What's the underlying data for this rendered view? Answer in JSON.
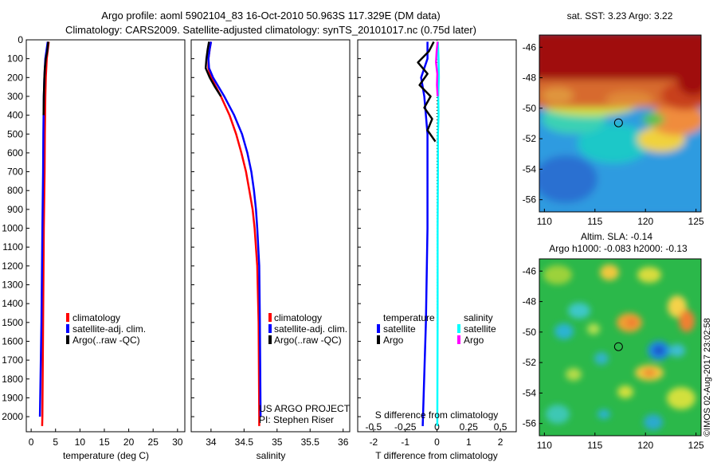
{
  "header": {
    "title_line1": "Argo profile: aoml 5902104_83 16-Oct-2010 50.963S 117.329E (DM data)",
    "title_line2": "Climatology: CARS2009. Satellite-adjusted climatology: synTS_20101017.nc (0.75d later)"
  },
  "colors": {
    "climatology": "#ff0000",
    "satellite": "#0000ff",
    "argo": "#000000",
    "sal_satellite": "#00ffff",
    "sal_argo": "#ff00ff"
  },
  "chart_data": [
    {
      "type": "line",
      "id": "temperature_profile",
      "xlabel": "temperature (deg C)",
      "ylim": [
        2080,
        0
      ],
      "yticks": [
        0,
        100,
        200,
        300,
        400,
        500,
        600,
        700,
        800,
        900,
        1000,
        1100,
        1200,
        1300,
        1400,
        1500,
        1600,
        1700,
        1800,
        1900,
        2000
      ],
      "xlim": [
        -1,
        31.5
      ],
      "xticks": [
        0,
        5,
        10,
        15,
        20,
        25,
        30
      ],
      "legend": [
        "climatology",
        "satellite-adj. clim.",
        "Argo(..raw -QC)"
      ],
      "series": [
        {
          "name": "climatology",
          "color": "#ff0000",
          "depth": [
            10,
            100,
            200,
            300,
            400,
            500,
            700,
            1000,
            1500,
            2000,
            2050
          ],
          "values": [
            3.6,
            3.2,
            3.0,
            2.9,
            2.85,
            2.8,
            2.75,
            2.6,
            2.45,
            2.3,
            2.25
          ]
        },
        {
          "name": "satellite-adj. clim.",
          "color": "#0000ff",
          "depth": [
            10,
            100,
            200,
            300,
            400,
            500,
            700,
            1000,
            1500,
            2000
          ],
          "values": [
            3.4,
            2.9,
            2.7,
            2.6,
            2.55,
            2.5,
            2.45,
            2.3,
            2.1,
            1.8
          ]
        },
        {
          "name": "Argo(..raw -QC)",
          "color": "#000000",
          "depth": [
            10,
            60,
            100,
            150,
            200,
            300,
            400
          ],
          "values": [
            3.5,
            3.3,
            3.0,
            2.8,
            2.7,
            2.6,
            2.55
          ]
        }
      ]
    },
    {
      "type": "line",
      "id": "salinity_profile",
      "xlabel": "salinity",
      "ylim": [
        2080,
        0
      ],
      "xlim": [
        33.7,
        36.1
      ],
      "xticks": [
        34,
        34.5,
        35,
        35.5,
        36
      ],
      "xticklabels": [
        "34",
        "34.5",
        "35",
        "35.5",
        "36"
      ],
      "legend": [
        "climatology",
        "satellite-adj. clim.",
        "Argo(..raw -QC)"
      ],
      "annotation_line1": "US ARGO PROJECT",
      "annotation_line2": "PI: Stephen Riser",
      "series": [
        {
          "name": "climatology",
          "color": "#ff0000",
          "depth": [
            10,
            50,
            100,
            150,
            200,
            300,
            400,
            500,
            600,
            700,
            800,
            900,
            1000,
            1200,
            1500,
            2000,
            2050
          ],
          "values": [
            34.0,
            33.98,
            33.96,
            33.96,
            34.0,
            34.15,
            34.28,
            34.38,
            34.46,
            34.53,
            34.58,
            34.63,
            34.66,
            34.7,
            34.72,
            34.73,
            34.73
          ]
        },
        {
          "name": "satellite-adj. clim.",
          "color": "#0000ff",
          "depth": [
            10,
            50,
            100,
            150,
            200,
            300,
            400,
            500,
            600,
            700,
            800,
            900,
            1000,
            1200,
            1500,
            2000
          ],
          "values": [
            34.0,
            33.98,
            33.96,
            33.97,
            34.03,
            34.2,
            34.35,
            34.47,
            34.55,
            34.61,
            34.65,
            34.68,
            34.7,
            34.73,
            34.74,
            34.75
          ]
        },
        {
          "name": "Argo(..raw -QC)",
          "color": "#000000",
          "depth": [
            10,
            50,
            100,
            150,
            200,
            250,
            300
          ],
          "values": [
            33.97,
            33.95,
            33.93,
            33.92,
            33.98,
            34.06,
            34.15
          ]
        }
      ]
    },
    {
      "type": "line",
      "id": "difference_profile",
      "xlabel_t": "T difference from climatology",
      "xlabel_s": "S difference from climatology",
      "ylim": [
        2080,
        0
      ],
      "xlim": [
        -2.5,
        2.5
      ],
      "xticks_t": [
        -2,
        -1,
        0,
        1,
        2
      ],
      "xticklabels_s": [
        "-0.5",
        "-0.25",
        "0",
        "0.25",
        "0.5"
      ],
      "legend_temperature_title": "temperature",
      "legend_salinity_title": "salinity",
      "legend_satellite": "satellite",
      "legend_argo": "Argo",
      "series": [
        {
          "name": "temperature satellite",
          "color": "#0000ff",
          "depth": [
            10,
            100,
            200,
            300,
            400,
            500,
            700,
            1000,
            1500,
            2050
          ],
          "values": [
            -0.3,
            -0.3,
            -0.5,
            -0.4,
            -0.35,
            -0.3,
            -0.3,
            -0.3,
            -0.35,
            -0.45
          ]
        },
        {
          "name": "temperature Argo",
          "color": "#000000",
          "depth": [
            10,
            60,
            120,
            180,
            240,
            300,
            360,
            420,
            480,
            540
          ],
          "values": [
            -0.1,
            -0.25,
            -0.6,
            -0.3,
            -0.55,
            -0.2,
            -0.4,
            -0.15,
            -0.3,
            -0.05
          ]
        },
        {
          "name": "salinity satellite",
          "color": "#00ffff",
          "depth": [
            10,
            100,
            200,
            300,
            400,
            500,
            700,
            1000,
            1500,
            2050
          ],
          "values": [
            0.03,
            0.05,
            0.06,
            0.04,
            0.05,
            0.03,
            0.03,
            0.02,
            0.02,
            0.01
          ]
        },
        {
          "name": "salinity Argo",
          "color": "#ff00ff",
          "depth": [
            10,
            60,
            120,
            180,
            240,
            300
          ],
          "values": [
            0.02,
            -0.01,
            -0.03,
            0.01,
            0.0,
            0.02
          ]
        }
      ]
    },
    {
      "type": "heatmap",
      "id": "sst_map",
      "title": "sat. SST: 3.23  Argo: 3.22",
      "xlim": [
        109.5,
        125.5
      ],
      "ylim": [
        -56.8,
        -45.2
      ],
      "xticks": [
        110,
        115,
        120,
        125
      ],
      "yticks": [
        -46,
        -48,
        -50,
        -52,
        -54,
        -56
      ],
      "argo_position": {
        "lon": 117.33,
        "lat": -50.96
      }
    },
    {
      "type": "heatmap",
      "id": "sla_map",
      "title_line1": "Altim. SLA: -0.14",
      "title_line2": "Argo h1000: -0.083 h2000: -0.13",
      "xlim": [
        109.5,
        125.5
      ],
      "ylim": [
        -56.8,
        -45.2
      ],
      "xticks": [
        110,
        115,
        120,
        125
      ],
      "yticks": [
        -46,
        -48,
        -50,
        -52,
        -54,
        -56
      ],
      "argo_position": {
        "lon": 117.33,
        "lat": -50.96
      }
    }
  ],
  "credit": "©IMOS 02-Aug-2017 23:02:58"
}
